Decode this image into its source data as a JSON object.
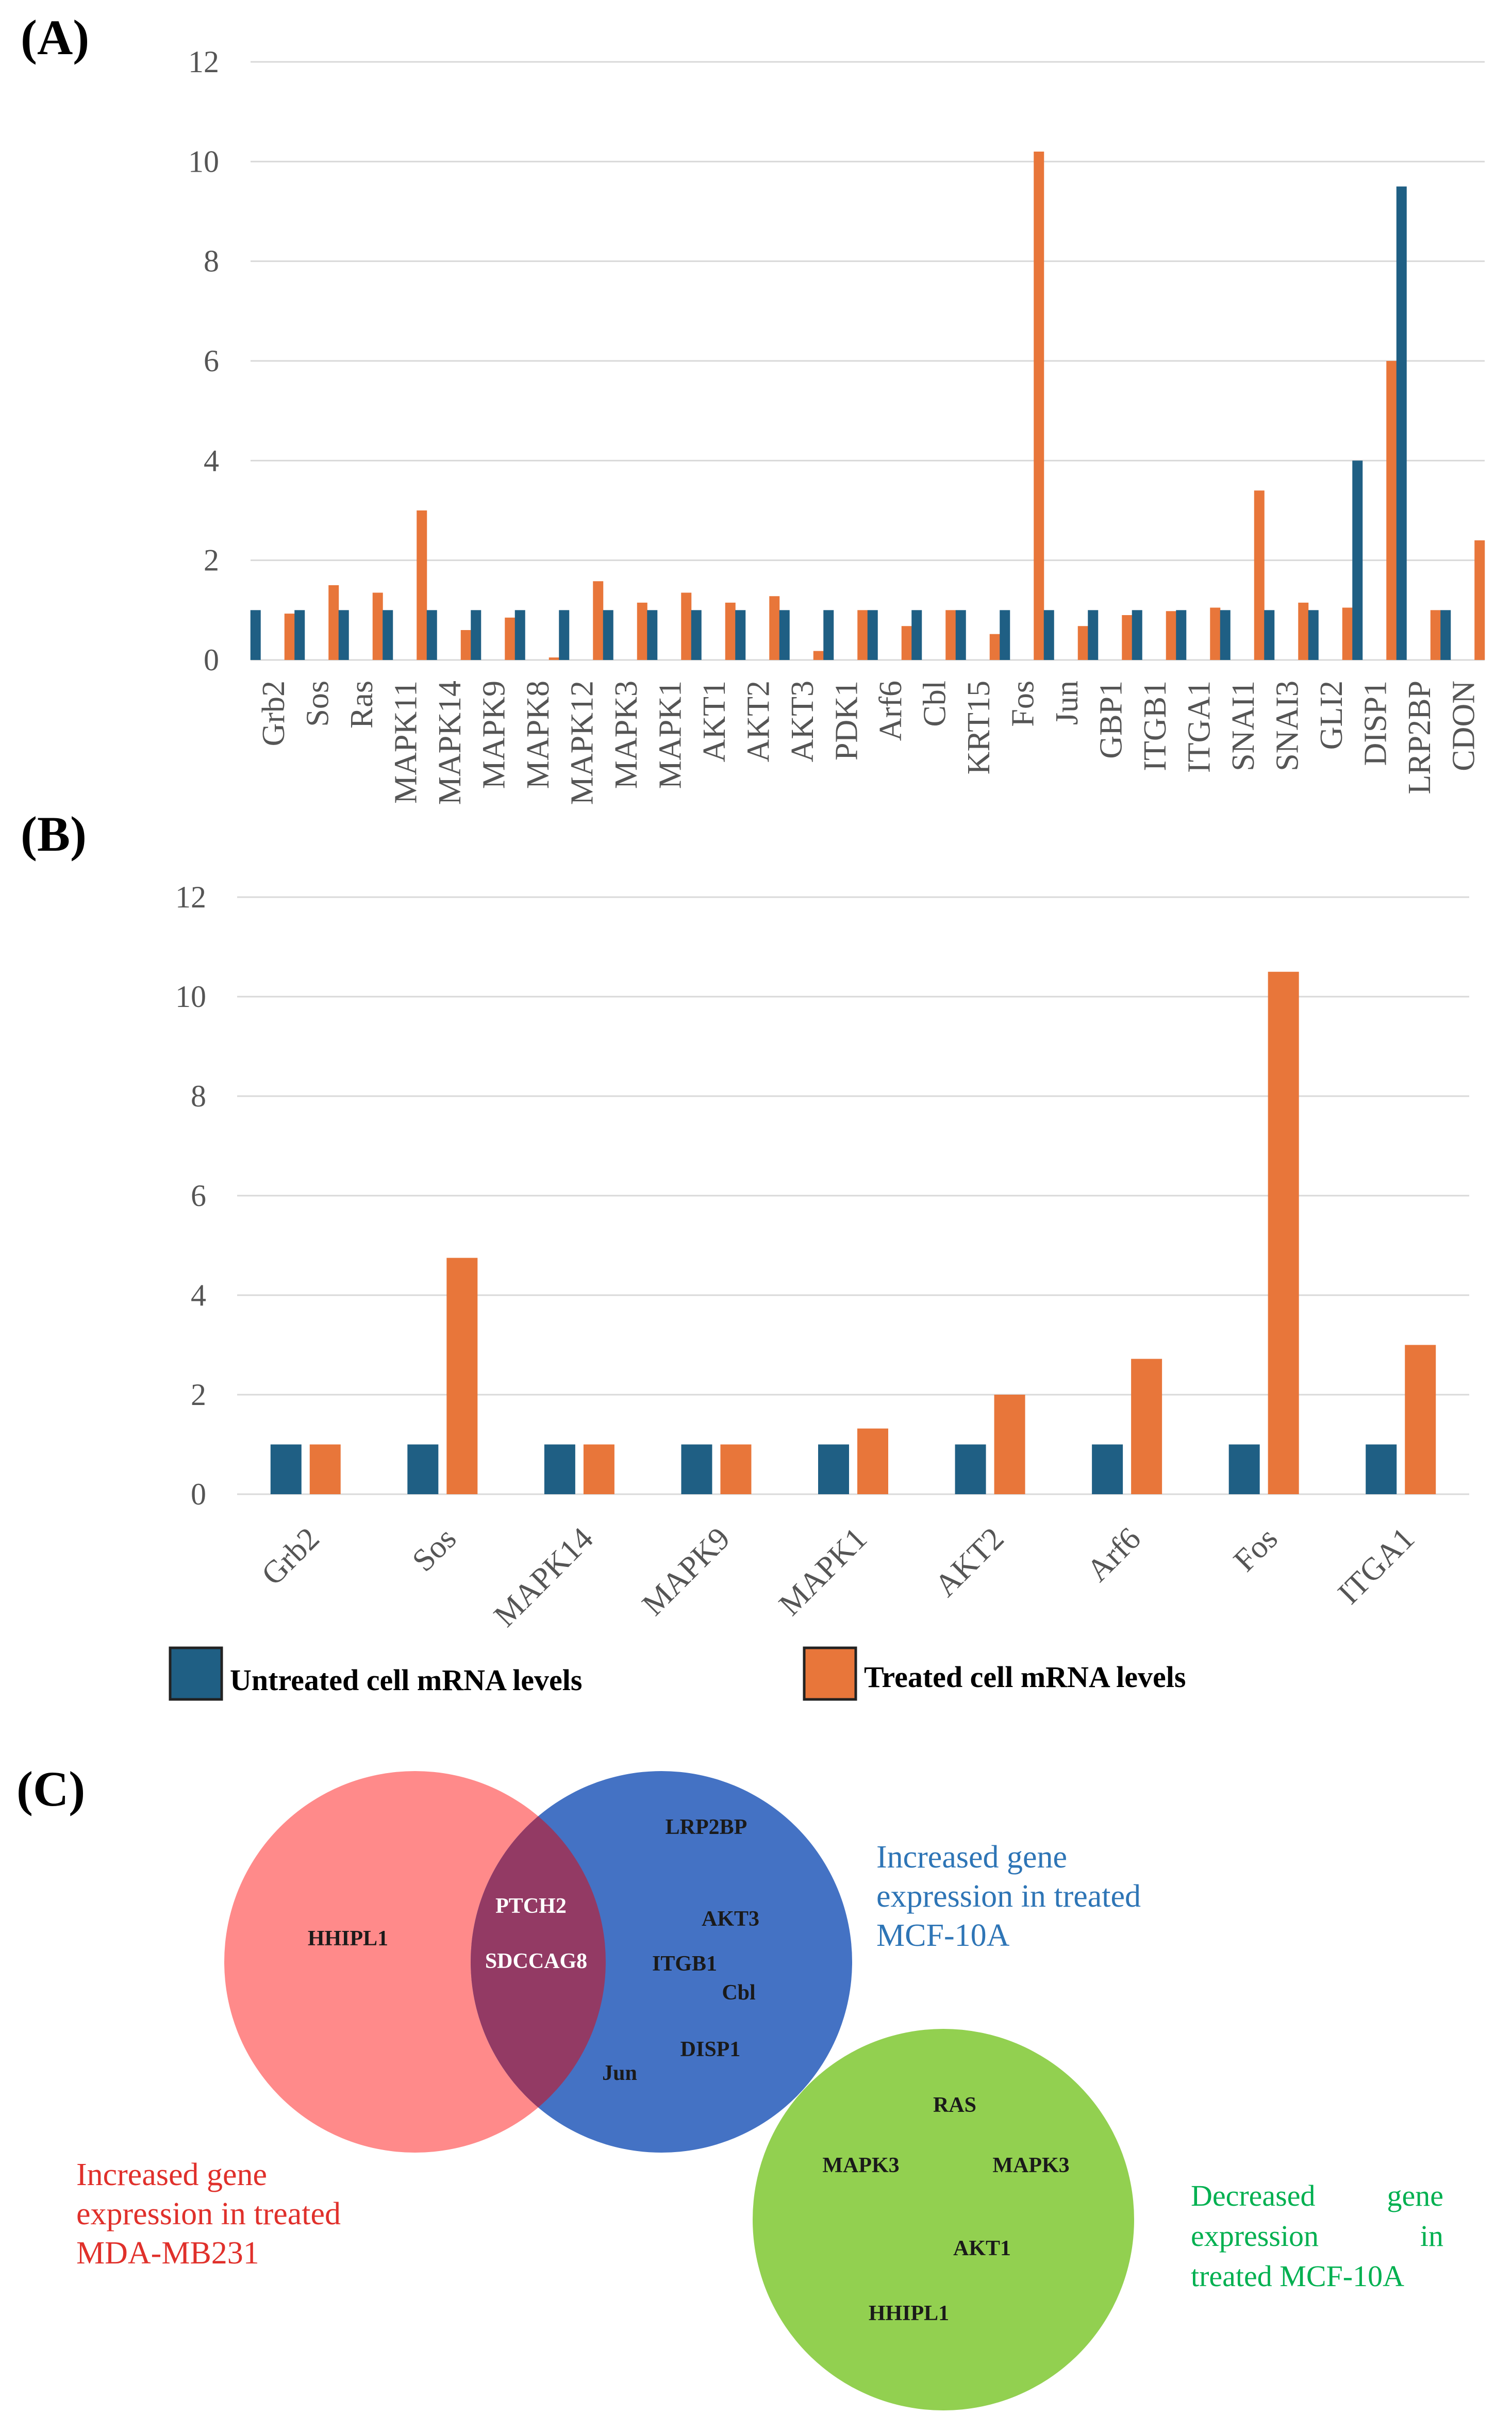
{
  "chart_data": [
    {
      "panel": "(A)",
      "type": "bar",
      "title": "",
      "xlabel": "",
      "ylabel": "",
      "ylim": [
        0,
        12
      ],
      "yticks": [
        0,
        2,
        4,
        6,
        8,
        10,
        12
      ],
      "categories": [
        "Grb2",
        "Sos",
        "Ras",
        "MAPK11",
        "MAPK14",
        "MAPK9",
        "MAPK8",
        "MAPK12",
        "MAPK3",
        "MAPK1",
        "AKT1",
        "AKT2",
        "AKT3",
        "PDK1",
        "Arf6",
        "Cbl",
        "KRT15",
        "Fos",
        "Jun",
        "GBP1",
        "ITGB1",
        "ITGA1",
        "SNAI1",
        "SNAI3",
        "GLI2",
        "DISP1",
        "LRP2BP",
        "CDON"
      ],
      "series": [
        {
          "name": "Untreated cell mRNA levels",
          "color": "#1f5f84",
          "values": [
            1,
            1,
            1,
            1,
            1,
            1,
            1,
            1,
            1,
            1,
            1,
            1,
            1,
            1,
            1,
            1,
            1,
            1,
            1,
            1,
            1,
            1,
            1,
            1,
            1,
            4,
            9.5,
            1
          ]
        },
        {
          "name": "Treated cell mRNA levels",
          "color": "#e8763a",
          "values": [
            0.93,
            1.5,
            1.35,
            3.0,
            0.6,
            0.85,
            0.05,
            1.58,
            1.15,
            1.35,
            1.15,
            1.28,
            0.18,
            1.0,
            0.68,
            1.0,
            0.52,
            10.2,
            0.68,
            0.9,
            0.98,
            1.05,
            3.4,
            1.15,
            1.05,
            6.0,
            1.0,
            2.4
          ]
        }
      ]
    },
    {
      "panel": "(B)",
      "type": "bar",
      "title": "",
      "xlabel": "",
      "ylabel": "",
      "ylim": [
        0,
        12
      ],
      "yticks": [
        0,
        2,
        4,
        6,
        8,
        10,
        12
      ],
      "categories": [
        "Grb2",
        "Sos",
        "MAPK14",
        "MAPK9",
        "MAPK1",
        "AKT2",
        "Arf6",
        "Fos",
        "ITGA1"
      ],
      "series": [
        {
          "name": "Untreated cell mRNA levels",
          "color": "#1f5f84",
          "values": [
            1,
            1,
            1,
            1,
            1,
            1,
            1,
            1,
            1
          ]
        },
        {
          "name": "Treated cell mRNA levels",
          "color": "#e8763a",
          "values": [
            1,
            4.75,
            1,
            1,
            1.32,
            2.0,
            2.72,
            10.5,
            3.0
          ]
        }
      ],
      "legend": [
        "Untreated cell mRNA levels",
        "Treated cell mRNA levels"
      ],
      "legend_position": "bottom"
    }
  ],
  "venn": {
    "panel": "(C)",
    "red_circle": {
      "color": "#ff8a8a",
      "genes": [
        "HHIPL1"
      ],
      "caption": [
        "Increased gene",
        "expression in treated",
        "MDA-MB231"
      ],
      "caption_color": "#e0302b"
    },
    "overlap": {
      "color": "#933a64",
      "genes": [
        "PTCH2",
        "SDCCAG8"
      ]
    },
    "blue_circle": {
      "color": "#4472c4",
      "genes": [
        "LRP2BP",
        "AKT3",
        "ITGB1",
        "Cbl",
        "DISP1",
        "Jun"
      ],
      "caption": [
        "Increased gene",
        "expression in treated",
        "MCF-10A"
      ],
      "caption_color": "#2e75b6"
    },
    "green_circle": {
      "color": "#92d050",
      "genes": [
        "RAS",
        "MAPK3",
        "MAPK3",
        "AKT1",
        "HHIPL1"
      ],
      "caption": [
        "Decreased",
        "gene",
        "expression",
        "in",
        "treated MCF-10A"
      ],
      "caption_color": "#00b050"
    }
  }
}
